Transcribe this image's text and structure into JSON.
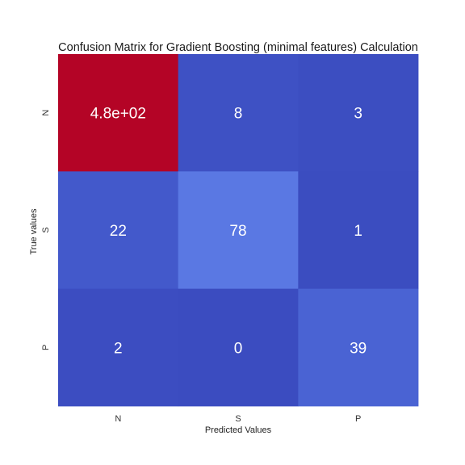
{
  "chart_data": {
    "type": "heatmap",
    "title": "Confusion Matrix for Gradient Boosting (minimal features) Calculation",
    "xlabel": "Predicted Values",
    "ylabel": "True values",
    "x_categories": [
      "N",
      "S",
      "P"
    ],
    "y_categories": [
      "N",
      "S",
      "P"
    ],
    "values": [
      [
        480,
        8,
        3
      ],
      [
        22,
        78,
        1
      ],
      [
        2,
        0,
        39
      ]
    ],
    "cell_labels": [
      [
        "4.8e+02",
        "8",
        "3"
      ],
      [
        "22",
        "78",
        "1"
      ],
      [
        "2",
        "0",
        "39"
      ]
    ],
    "colormap": "coolwarm",
    "color_range": [
      0,
      480
    ],
    "colorbar": false
  }
}
